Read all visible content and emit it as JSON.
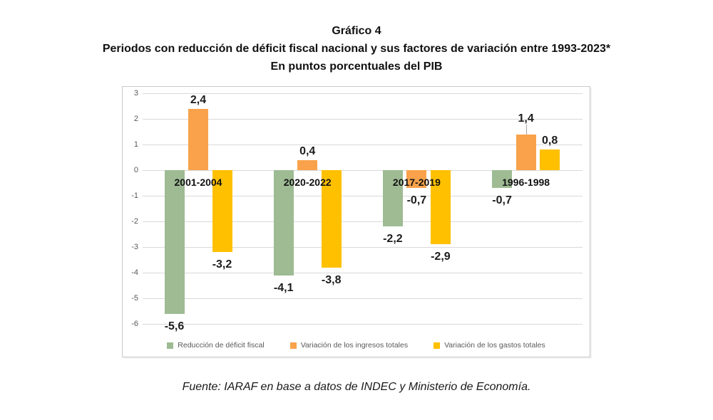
{
  "title": {
    "line1": "Gráfico 4",
    "line2": "Periodos con reducción de déficit fiscal nacional y sus factores de variación entre 1993-2023*",
    "line3": "En puntos porcentuales del PIB"
  },
  "footer": "Fuente: IARAF en base a datos de INDEC y Ministerio de Economía.",
  "chart_data": {
    "type": "bar",
    "categories": [
      "2001-2004",
      "2020-2022",
      "2017-2019",
      "1996-1998"
    ],
    "series": [
      {
        "name": "Reducción de déficit fiscal",
        "color": "#9EBB93",
        "values": [
          -5.6,
          -4.1,
          -2.2,
          -0.7
        ]
      },
      {
        "name": "Variación de los  ingresos totales",
        "color": "#F9A24B",
        "values": [
          2.4,
          0.4,
          -0.7,
          1.4
        ]
      },
      {
        "name": "Variación de los gastos totales",
        "color": "#FFC000",
        "values": [
          -3.2,
          -3.8,
          -2.9,
          0.8
        ]
      }
    ],
    "ylim": [
      -6,
      3
    ],
    "ytick_step": 1,
    "grid": true,
    "legend_position": "bottom",
    "decimal_separator": ",",
    "axis_text_color": "#595959",
    "gridline_color": "#D9D9D9",
    "label_leader": {
      "series_index": 1,
      "point_index": 3
    }
  }
}
